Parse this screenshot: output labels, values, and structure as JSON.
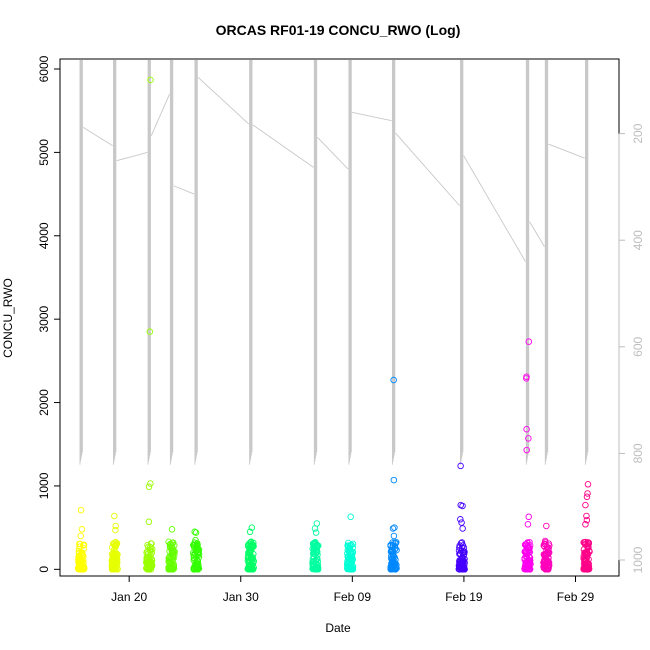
{
  "chart_data": {
    "type": "scatter",
    "title": "ORCAS RF01-19 CONCU_RWO (Log)",
    "xlabel": "Date",
    "ylabel": "CONCU_RWO",
    "x_ticks": [
      "Jan 20",
      "Jan 30",
      "Feb 09",
      "Feb 19",
      "Feb 29"
    ],
    "x_tick_days": [
      20,
      30,
      40,
      50,
      60
    ],
    "xlim": [
      13.8,
      63.9
    ],
    "y_ticks": [
      0,
      1000,
      2000,
      3000,
      4000,
      5000,
      6000
    ],
    "ylim": [
      -80,
      6120
    ],
    "y2_ticks": [
      200,
      400,
      600,
      800,
      1000
    ],
    "y2lim": [
      1030,
      60
    ],
    "grid": false,
    "flights": [
      {
        "day": 15.7,
        "color": "#ffff00",
        "outliers": [
          710,
          480,
          400
        ]
      },
      {
        "day": 18.7,
        "color": "#e6ff00",
        "outliers": [
          640,
          520,
          470
        ]
      },
      {
        "day": 21.8,
        "color": "#99ff00",
        "outliers": [
          5870,
          2850,
          1030,
          990,
          570
        ]
      },
      {
        "day": 23.8,
        "color": "#66ff00",
        "outliers": [
          480,
          260
        ]
      },
      {
        "day": 26.0,
        "color": "#33ff00",
        "outliers": [
          450,
          440,
          350,
          280
        ]
      },
      {
        "day": 30.9,
        "color": "#00ff66",
        "outliers": [
          500,
          450,
          330
        ]
      },
      {
        "day": 36.7,
        "color": "#00ffa0",
        "outliers": [
          550,
          490,
          440
        ]
      },
      {
        "day": 39.8,
        "color": "#00ffd5",
        "outliers": [
          630,
          270,
          240
        ]
      },
      {
        "day": 43.7,
        "color": "#0088ff",
        "outliers": [
          2270,
          1070,
          500,
          490,
          400
        ]
      },
      {
        "day": 49.8,
        "color": "#4400ff",
        "outliers": [
          1240,
          770,
          760,
          600,
          560,
          490
        ]
      },
      {
        "day": 55.7,
        "color": "#ff00ee",
        "outliers": [
          2730,
          2310,
          2290,
          1680,
          1570,
          1430,
          630,
          540
        ]
      },
      {
        "day": 57.4,
        "color": "#ff00bb",
        "outliers": [
          520,
          340,
          300
        ]
      },
      {
        "day": 61.0,
        "color": "#ff0088",
        "outliers": [
          1020,
          910,
          870,
          770,
          640,
          590,
          540,
          280
        ]
      }
    ],
    "line_color": "#c8c8c8"
  }
}
